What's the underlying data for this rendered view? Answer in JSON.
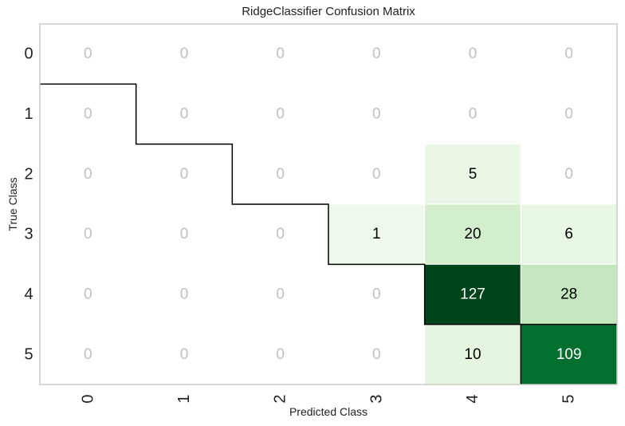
{
  "chart_data": {
    "type": "heatmap",
    "title": "RidgeClassifier Confusion Matrix",
    "xlabel": "Predicted Class",
    "ylabel": "True Class",
    "x_categories": [
      "0",
      "1",
      "2",
      "3",
      "4",
      "5"
    ],
    "y_categories": [
      "0",
      "1",
      "2",
      "3",
      "4",
      "5"
    ],
    "values": [
      [
        0,
        0,
        0,
        0,
        0,
        0
      ],
      [
        0,
        0,
        0,
        0,
        0,
        0
      ],
      [
        0,
        0,
        0,
        0,
        5,
        0
      ],
      [
        0,
        0,
        0,
        1,
        20,
        6
      ],
      [
        0,
        0,
        0,
        0,
        127,
        28
      ],
      [
        0,
        0,
        0,
        0,
        10,
        109
      ]
    ],
    "colormap": "Greens",
    "zero_text_color": "#c0c0c0",
    "dark_text_color": "#000000",
    "light_text_color": "#ffffff",
    "diagonal_outline": true
  }
}
